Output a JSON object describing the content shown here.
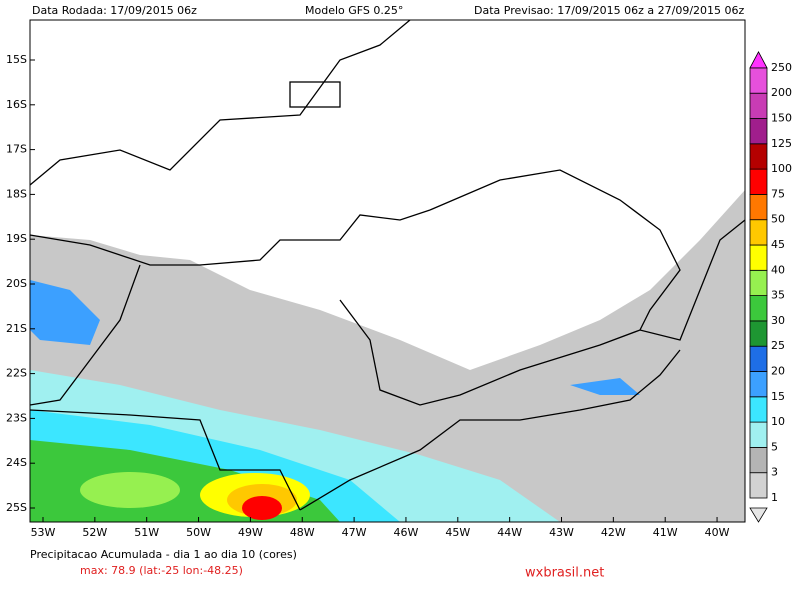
{
  "header": {
    "run": "Data Rodada: 17/09/2015 06z",
    "model": "Modelo GFS 0.25°",
    "forecast": "Data Previsao: 17/09/2015 06z a 27/09/2015 06z"
  },
  "map": {
    "lat_labels": [
      "15S",
      "16S",
      "17S",
      "18S",
      "19S",
      "20S",
      "21S",
      "22S",
      "23S",
      "24S",
      "25S"
    ],
    "lon_labels": [
      "53W",
      "52W",
      "51W",
      "50W",
      "49W",
      "48W",
      "47W",
      "46W",
      "45W",
      "44W",
      "43W",
      "42W",
      "41W",
      "40W"
    ]
  },
  "legend": {
    "levels": [
      1,
      3,
      5,
      10,
      15,
      20,
      25,
      30,
      35,
      40,
      45,
      50,
      75,
      100,
      125,
      150,
      200,
      250
    ],
    "colors": [
      "#d2d2d2",
      "#b4b4b4",
      "#a0f0f0",
      "#3ce6ff",
      "#3ca0ff",
      "#1e6ee6",
      "#1e9632",
      "#3cc83c",
      "#96f050",
      "#ffff00",
      "#ffc800",
      "#ff7800",
      "#ff0000",
      "#b40000",
      "#a01e8c",
      "#c83cb4",
      "#e650dc",
      "#ff32ff"
    ]
  },
  "footer": {
    "title": "Precipitacao Acumulada - dia 1 ao dia 10 (cores)",
    "max": "max: 78.9 (lat:-25 lon:-48.25)",
    "site": "wxbrasil.net"
  }
}
